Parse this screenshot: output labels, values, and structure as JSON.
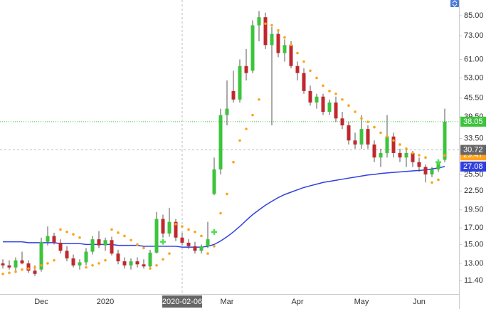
{
  "chart_data": {
    "type": "candlestick",
    "log_scale": true,
    "up_color": "#3cc43c",
    "down_color": "#c0282d",
    "categories": [
      null,
      null,
      null,
      null,
      null,
      null,
      "Dec",
      null,
      null,
      null,
      null,
      null,
      null,
      null,
      null,
      null,
      "2020",
      null,
      null,
      null,
      null,
      null,
      null,
      null,
      null,
      null,
      null,
      null,
      "2020-02-06",
      null,
      null,
      null,
      null,
      null,
      null,
      "Mar",
      null,
      null,
      null,
      null,
      null,
      null,
      null,
      null,
      null,
      null,
      "Apr",
      null,
      null,
      null,
      null,
      null,
      null,
      null,
      null,
      null,
      "May",
      null,
      null,
      null,
      null,
      null,
      null,
      null,
      null,
      "Jun",
      null,
      null,
      null,
      null
    ],
    "open": [
      13.0,
      12.8,
      12.6,
      13.3,
      13.0,
      12.3,
      12.4,
      15.3,
      16.0,
      15.2,
      14.3,
      13.5,
      12.8,
      13.1,
      14.2,
      15.6,
      14.9,
      15.5,
      14.0,
      13.2,
      12.8,
      13.2,
      12.9,
      12.7,
      14.1,
      18.2,
      16.3,
      17.8,
      15.8,
      15.2,
      14.8,
      14.3,
      14.8,
      22.0,
      26.5,
      40.0,
      48,
      45,
      58,
      56,
      79,
      84,
      68,
      74,
      64,
      68,
      58,
      55,
      48,
      44,
      46,
      41,
      44,
      39,
      37,
      33,
      32,
      36,
      32,
      29,
      30,
      34,
      30,
      29,
      30,
      28,
      27,
      25.5,
      26.5,
      28.5
    ],
    "high": [
      13.4,
      13.3,
      13.6,
      14.2,
      13.3,
      12.8,
      15.8,
      17.2,
      16.4,
      15.6,
      14.8,
      13.9,
      13.4,
      14.6,
      16.0,
      16.6,
      15.8,
      15.9,
      14.4,
      13.6,
      13.5,
      13.6,
      13.4,
      14.4,
      19.2,
      18.8,
      19.8,
      18.2,
      16.4,
      15.6,
      15.3,
      15.0,
      17.8,
      29.0,
      42.0,
      52.0,
      56,
      61,
      66,
      82,
      88,
      87,
      78,
      76,
      71,
      70,
      60,
      57,
      50,
      47,
      47,
      45,
      46,
      41,
      38,
      35,
      40,
      37,
      33,
      31,
      40,
      35,
      31,
      31,
      30.5,
      29,
      27.5,
      27,
      28.5,
      42
    ],
    "low": [
      12.5,
      12.4,
      12.3,
      12.9,
      12.1,
      11.8,
      12.2,
      14.9,
      15.0,
      14.0,
      13.2,
      12.6,
      12.4,
      12.8,
      13.9,
      14.6,
      14.3,
      13.8,
      12.9,
      12.5,
      12.4,
      12.6,
      12.5,
      12.6,
      14.0,
      15.8,
      15.9,
      15.4,
      14.9,
      14.5,
      14.0,
      14.0,
      14.6,
      21.8,
      25.5,
      37.0,
      44,
      44,
      52,
      55,
      70,
      66,
      37,
      62,
      60,
      57,
      52,
      47,
      43,
      42,
      40,
      40,
      38,
      36,
      32,
      31,
      31,
      31,
      28,
      27,
      29,
      29,
      28,
      27,
      27,
      26,
      24,
      25,
      26,
      28
    ],
    "close": [
      12.8,
      12.6,
      13.3,
      13.0,
      12.3,
      12.0,
      15.3,
      16.0,
      15.2,
      14.3,
      13.5,
      12.8,
      13.1,
      14.2,
      15.6,
      14.9,
      15.5,
      14.0,
      13.2,
      12.8,
      13.2,
      12.9,
      12.7,
      14.1,
      18.2,
      16.3,
      17.8,
      15.8,
      15.2,
      14.8,
      14.3,
      14.8,
      15.6,
      26.5,
      40.0,
      42.0,
      45,
      58,
      55,
      79,
      84,
      68,
      74,
      64,
      68,
      58,
      55,
      48,
      44,
      46,
      41,
      44,
      39,
      37,
      33,
      32,
      36,
      32,
      29,
      30,
      34,
      30,
      29,
      30,
      28,
      27,
      25.5,
      26.5,
      28,
      38.05
    ],
    "ma": {
      "color": "#3040e0",
      "values": [
        15.3,
        15.3,
        15.3,
        15.3,
        15.2,
        15.2,
        15.2,
        15.2,
        15.2,
        15.1,
        15.1,
        15.1,
        15.1,
        15.0,
        15.0,
        15.0,
        15.0,
        15.0,
        14.9,
        14.9,
        14.9,
        14.9,
        14.8,
        14.8,
        14.8,
        14.8,
        14.8,
        14.8,
        14.7,
        14.7,
        14.7,
        14.7,
        14.8,
        15.0,
        15.4,
        15.9,
        16.5,
        17.2,
        18.0,
        18.8,
        19.5,
        20.2,
        20.8,
        21.4,
        21.9,
        22.3,
        22.7,
        23.1,
        23.4,
        23.7,
        24.0,
        24.2,
        24.4,
        24.6,
        24.8,
        25.0,
        25.2,
        25.4,
        25.5,
        25.7,
        25.8,
        25.9,
        26.0,
        26.1,
        26.2,
        26.3,
        26.4,
        26.6,
        26.8,
        27.08
      ]
    },
    "sar": {
      "color": "#ffa31a",
      "values": [
        12.0,
        12.1,
        12.2,
        12.4,
        12.5,
        12.6,
        12.8,
        13.0,
        13.3,
        16.8,
        16.5,
        16.2,
        15.8,
        12.6,
        12.8,
        13.0,
        13.3,
        16.8,
        16.4,
        16.0,
        15.5,
        15.0,
        14.6,
        12.5,
        12.8,
        13.4,
        14.0,
        17.5,
        17.2,
        16.8,
        16.5,
        16.0,
        14.0,
        14.8,
        19.0,
        22.0,
        28.0,
        33.0,
        36.0,
        40.0,
        45.0,
        80.0,
        79.0,
        76.0,
        72.0,
        68.0,
        64.0,
        60.0,
        56.0,
        53.0,
        50.0,
        48.0,
        47.0,
        45.0,
        43.0,
        41.0,
        39.0,
        38.0,
        36.5,
        35.0,
        34.0,
        33.0,
        32.0,
        31.0,
        30.0,
        29.5,
        29.0,
        24.0,
        24.5,
        29.47
      ]
    },
    "signals": {
      "color": "#4ee04e",
      "values": [
        null,
        null,
        null,
        null,
        null,
        null,
        null,
        null,
        null,
        null,
        null,
        null,
        null,
        null,
        null,
        null,
        null,
        null,
        null,
        null,
        null,
        null,
        null,
        null,
        null,
        15.3,
        null,
        null,
        null,
        null,
        null,
        null,
        null,
        16.5,
        null,
        null,
        null,
        null,
        null,
        null,
        null,
        null,
        null,
        null,
        null,
        null,
        null,
        null,
        null,
        null,
        null,
        null,
        null,
        null,
        null,
        null,
        null,
        null,
        null,
        null,
        null,
        null,
        null,
        null,
        null,
        null,
        null,
        null,
        28,
        null
      ]
    },
    "crosshair": {
      "x": "2020-02-06",
      "y": 30.72,
      "color": "#666666"
    },
    "ylim": [
      10.3,
      95.7
    ],
    "yticks": [
      {
        "value": 11.4,
        "label": "11.40"
      },
      {
        "value": 13,
        "label": "13.00"
      },
      {
        "value": 15,
        "label": "15.00"
      },
      {
        "value": 17,
        "label": "17.00"
      },
      {
        "value": 19.5,
        "label": "19.50"
      },
      {
        "value": 22.5,
        "label": "22.50"
      },
      {
        "value": 25.5,
        "label": "25.50"
      },
      {
        "value": 33.5,
        "label": "33.50"
      },
      {
        "value": 39.5,
        "label": "39.50"
      },
      {
        "value": 45.5,
        "label": "45.50"
      },
      {
        "value": 53,
        "label": "53.00"
      },
      {
        "value": 61,
        "label": "61.00"
      },
      {
        "value": 73,
        "label": "73.00"
      },
      {
        "value": 85,
        "label": "85.00"
      }
    ]
  }
}
